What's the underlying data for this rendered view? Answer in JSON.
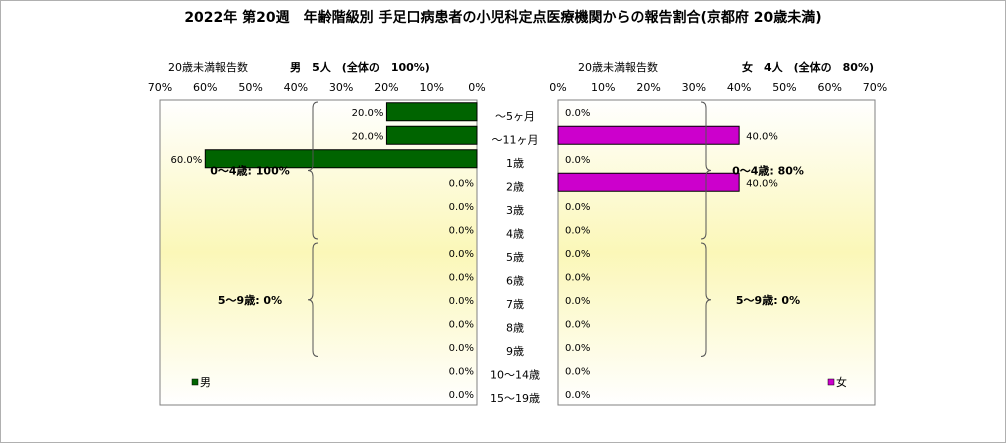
{
  "title": "2022年 第20週　年齢階級別 手足口病患者の小児科定点医療機関からの報告割合(京都府 20歳未満)",
  "chart_data": [
    {
      "type": "bar",
      "orientation": "horizontal",
      "direction": "leftward",
      "header_left": "20歳未満報告数",
      "header_right": "男　5人　(全体の　100%)",
      "xlim": [
        0,
        70
      ],
      "ticks": [
        "0%",
        "10%",
        "20%",
        "30%",
        "40%",
        "50%",
        "60%",
        "70%"
      ],
      "categories": [
        "～5ヶ月",
        "～11ヶ月",
        "1歳",
        "2歳",
        "3歳",
        "4歳",
        "5歳",
        "6歳",
        "7歳",
        "8歳",
        "9歳",
        "10～14歳",
        "15～19歳"
      ],
      "series": [
        {
          "name": "男",
          "color": "#006400",
          "values": [
            20.0,
            20.0,
            60.0,
            0.0,
            0.0,
            0.0,
            0.0,
            0.0,
            0.0,
            0.0,
            0.0,
            0.0,
            0.0
          ],
          "labels": [
            "20.0%",
            "20.0%",
            "60.0%",
            "0.0%",
            "0.0%",
            "0.0%",
            "0.0%",
            "0.0%",
            "0.0%",
            "0.0%",
            "0.0%",
            "0.0%",
            "0.0%"
          ]
        }
      ],
      "annotations": [
        "0～4歳: 100%",
        "5～9歳: 0%"
      ],
      "legend": "bottom-left"
    },
    {
      "type": "bar",
      "orientation": "horizontal",
      "direction": "rightward",
      "header_left": "20歳未満報告数",
      "header_right": "女　4人　(全体の　80%)",
      "xlim": [
        0,
        70
      ],
      "ticks": [
        "0%",
        "10%",
        "20%",
        "30%",
        "40%",
        "50%",
        "60%",
        "70%"
      ],
      "categories": [
        "～5ヶ月",
        "～11ヶ月",
        "1歳",
        "2歳",
        "3歳",
        "4歳",
        "5歳",
        "6歳",
        "7歳",
        "8歳",
        "9歳",
        "10～14歳",
        "15～19歳"
      ],
      "series": [
        {
          "name": "女",
          "color": "#CC00CC",
          "values": [
            0.0,
            40.0,
            0.0,
            40.0,
            0.0,
            0.0,
            0.0,
            0.0,
            0.0,
            0.0,
            0.0,
            0.0,
            0.0
          ],
          "labels": [
            "0.0%",
            "40.0%",
            "0.0%",
            "40.0%",
            "0.0%",
            "0.0%",
            "0.0%",
            "0.0%",
            "0.0%",
            "0.0%",
            "0.0%",
            "0.0%",
            "0.0%"
          ]
        }
      ],
      "annotations": [
        "0～4歳: 80%",
        "5～9歳: 0%"
      ],
      "legend": "bottom-right"
    }
  ]
}
